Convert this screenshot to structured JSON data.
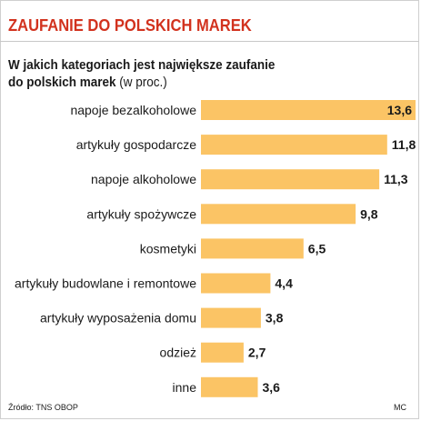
{
  "header": {
    "title": "ZAUFANIE DO POLSKICH MAREK"
  },
  "subtitle": {
    "line1": "W jakich kategoriach jest największe zaufanie",
    "line2_bold": "do polskich marek",
    "line2_normal": " (w proc.)"
  },
  "footer": {
    "source": "Źródło:  TNS OBOP",
    "credit": "MC"
  },
  "colors": {
    "bar": "#fbc465",
    "title": "#d2321e"
  },
  "chart_data": {
    "type": "bar",
    "orientation": "horizontal",
    "title": "W jakich kategoriach jest największe zaufanie do polskich marek",
    "unit": "(w proc.)",
    "categories": [
      "napoje bezalkoholowe",
      "artykuły gospodarcze",
      "napoje alkoholowe",
      "artykuły spożywcze",
      "kosmetyki",
      "artykuły budowlane i remontowe",
      "artykuły wyposażenia domu",
      "odzież",
      "inne"
    ],
    "values": [
      13.6,
      11.8,
      11.3,
      9.8,
      6.5,
      4.4,
      3.8,
      2.7,
      3.6
    ],
    "value_labels": [
      "13,6",
      "11,8",
      "11,3",
      "9,8",
      "6,5",
      "4,4",
      "3,8",
      "2,7",
      "3,6"
    ],
    "xlim": [
      0,
      13.6
    ],
    "grid": false,
    "legend": "none"
  }
}
